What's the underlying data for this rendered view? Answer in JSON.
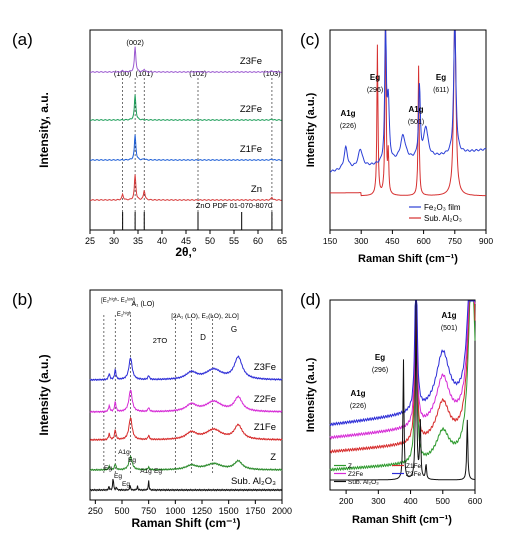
{
  "chart_data": [
    {
      "panel": "(a)",
      "type": "line",
      "xlabel": "2θ,°",
      "ylabel": "Intensity, a.u.",
      "xlim": [
        25,
        65
      ],
      "xticks": [
        "25",
        "30",
        "35",
        "40",
        "45",
        "50",
        "55",
        "60",
        "65"
      ],
      "peak_labels": [
        {
          "x": 31.8,
          "label": "(100)"
        },
        {
          "x": 34.4,
          "label": "(002)"
        },
        {
          "x": 36.3,
          "label": "(101)"
        },
        {
          "x": 47.5,
          "label": "(102)"
        },
        {
          "x": 62.9,
          "label": "(103)"
        }
      ],
      "reference_label": "ZnO PDF 01-070-8070",
      "series": [
        {
          "name": "Z3Fe",
          "color": "#9b59d0",
          "peaks": [
            {
              "x": 31.8,
              "h": 0.05
            },
            {
              "x": 34.4,
              "h": 0.9
            },
            {
              "x": 36.3,
              "h": 0.1
            },
            {
              "x": 47.5,
              "h": 0.02
            },
            {
              "x": 62.9,
              "h": 0.05
            }
          ]
        },
        {
          "name": "Z2Fe",
          "color": "#1e9e5a",
          "peaks": [
            {
              "x": 34.4,
              "h": 0.9
            },
            {
              "x": 62.9,
              "h": 0.03
            }
          ]
        },
        {
          "name": "Z1Fe",
          "color": "#1f5fd6",
          "peaks": [
            {
              "x": 34.4,
              "h": 0.9
            },
            {
              "x": 36.3,
              "h": 0.05
            },
            {
              "x": 62.9,
              "h": 0.03
            }
          ]
        },
        {
          "name": "Zn",
          "color": "#d63b3b",
          "peaks": [
            {
              "x": 31.8,
              "h": 0.2
            },
            {
              "x": 34.4,
              "h": 0.9
            },
            {
              "x": 36.3,
              "h": 0.35
            },
            {
              "x": 62.9,
              "h": 0.1
            }
          ]
        }
      ]
    },
    {
      "panel": "(b)",
      "type": "line",
      "xlabel": "Raman Shift (cm⁻¹)",
      "ylabel": "Intensity (a.u.)",
      "xlim": [
        200,
        2000
      ],
      "xticks": [
        "250",
        "500",
        "750",
        "1000",
        "1250",
        "1500",
        "1750",
        "2000"
      ],
      "annotations": [
        "[E₂ʰⁱᵍʰ- E₂ˡᵒʷ]",
        "E₂ʰⁱᵍʰ",
        "A₁ (LO)",
        "2TO",
        "[2A₁ (LO), E₁(LO), 2LO]",
        "D",
        "G"
      ],
      "substrate_labels": [
        "Eg",
        "A1g",
        "Eg",
        "Eg",
        "Eg",
        "A1g",
        "Eg"
      ],
      "series": [
        {
          "name": "Z3Fe",
          "color": "#2b2bd6"
        },
        {
          "name": "Z2Fe",
          "color": "#d62bd6"
        },
        {
          "name": "Z1Fe",
          "color": "#d62b2b"
        },
        {
          "name": "Z",
          "color": "#2b8a2b"
        },
        {
          "name": "Sub. Al₂O₃",
          "color": "#111111"
        }
      ]
    },
    {
      "panel": "(c)",
      "type": "line",
      "xlabel": "Raman Shift (cm⁻¹)",
      "ylabel": "Intensity (a.u.)",
      "xlim": [
        150,
        900
      ],
      "xticks": [
        "150",
        "300",
        "450",
        "600",
        "750",
        "900"
      ],
      "annotations": [
        {
          "mode": "A1g",
          "value": "(226)"
        },
        {
          "mode": "Eg",
          "value": "(296)"
        },
        {
          "mode": "A1g",
          "value": "(501)"
        },
        {
          "mode": "Eg",
          "value": "(611)"
        }
      ],
      "series": [
        {
          "name": "Fe₂O₃ film",
          "color": "#2b3fd6"
        },
        {
          "name": "Sub. Al₂O₃",
          "color": "#d63030"
        }
      ]
    },
    {
      "panel": "(d)",
      "type": "line",
      "xlabel": "Raman Shift (cm⁻¹)",
      "ylabel": "Intensity (a.u.)",
      "xlim": [
        150,
        600
      ],
      "xticks": [
        "200",
        "300",
        "400",
        "500",
        "600"
      ],
      "annotations": [
        {
          "mode": "A1g",
          "value": "(226)"
        },
        {
          "mode": "Eg",
          "value": "(296)"
        },
        {
          "mode": "A1g",
          "value": "(501)"
        }
      ],
      "series": [
        {
          "name": "Z",
          "color": "#2e9a2e"
        },
        {
          "name": "Z1Fe",
          "color": "#d62b2b"
        },
        {
          "name": "Z2Fe",
          "color": "#d62bd6"
        },
        {
          "name": "Z3Fe",
          "color": "#2b2bd6"
        },
        {
          "name": "Sub. Al₂O₃",
          "color": "#111111"
        }
      ]
    }
  ]
}
